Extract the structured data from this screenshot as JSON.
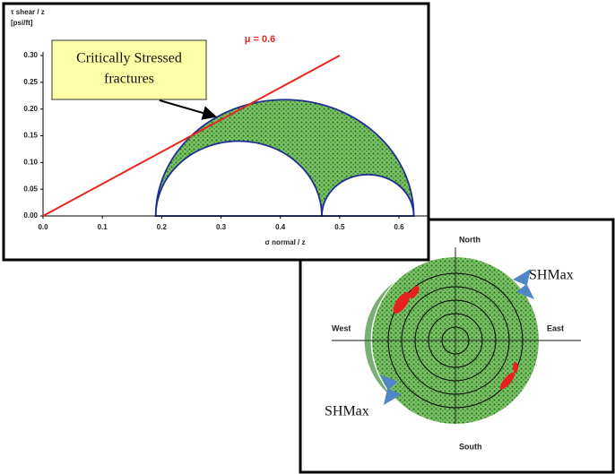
{
  "chart_data": [
    {
      "type": "mohr",
      "y_label": [
        "τ shear / z",
        "[psi/ft]"
      ],
      "x_label": "σ normal / z",
      "annotation": "μ = 0.6",
      "friction_coefficient": 0.6,
      "callout": [
        "Critically Stressed",
        "fractures"
      ],
      "sigma3": 0.19,
      "sigma2": 0.47,
      "sigma1": 0.625,
      "xlim": [
        0,
        0.65
      ],
      "ylim": [
        0,
        0.3
      ],
      "xticks": [
        {
          "value": 0,
          "label": "0.0"
        },
        0.1,
        0.2,
        0.3,
        0.4,
        0.5,
        0.6
      ],
      "yticks": [
        {
          "value": 0,
          "label": "0.00"
        },
        0.05,
        {
          "value": 0.1,
          "label": "0.10"
        },
        0.15,
        {
          "value": 0.2,
          "label": "0.20"
        },
        0.25,
        {
          "value": 0.3,
          "label": "0.30"
        }
      ],
      "colors": {
        "line": "#e8251f",
        "circle": "#1f2f8f",
        "points": "#2e8b22"
      }
    },
    {
      "type": "stereonet",
      "directions": {
        "north": "North",
        "south": "South",
        "east": "East",
        "west": "West"
      },
      "stress_labels": [
        "SHMax",
        "SHMax"
      ]
    }
  ]
}
